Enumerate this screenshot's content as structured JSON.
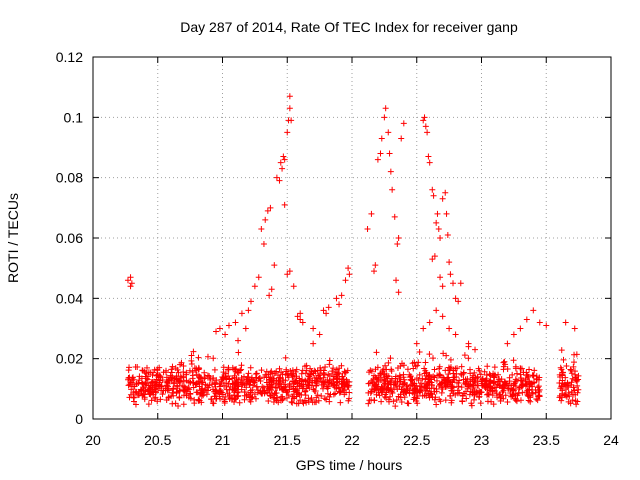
{
  "chart_data": {
    "type": "scatter",
    "title": "Day 287 of 2014, Rate Of TEC Index for receiver ganp",
    "xlabel": "GPS time / hours",
    "ylabel": "ROTI / TECUs",
    "xlim": [
      20,
      24
    ],
    "ylim": [
      0,
      0.12
    ],
    "x_ticks": [
      "20",
      "20.5",
      "21",
      "21.5",
      "22",
      "22.5",
      "23",
      "23.5",
      "24"
    ],
    "y_ticks": [
      "0",
      "0.02",
      "0.04",
      "0.06",
      "0.08",
      "0.1",
      "0.12"
    ],
    "grid": true,
    "marker": "+",
    "color": "#ff0000",
    "series": [
      {
        "name": "ROTI",
        "background_band": {
          "segments": [
            [
              20.27,
              21.98
            ],
            [
              22.12,
              23.45
            ],
            [
              23.6,
              23.75
            ]
          ],
          "y_range": [
            0.004,
            0.018
          ],
          "point_count": 1500
        },
        "points": [
          [
            20.27,
            0.046
          ],
          [
            20.29,
            0.047
          ],
          [
            20.3,
            0.045
          ],
          [
            20.29,
            0.044
          ],
          [
            20.95,
            0.029
          ],
          [
            20.98,
            0.03
          ],
          [
            21.02,
            0.028
          ],
          [
            21.05,
            0.031
          ],
          [
            21.1,
            0.032
          ],
          [
            21.12,
            0.026
          ],
          [
            21.15,
            0.035
          ],
          [
            21.18,
            0.03
          ],
          [
            21.2,
            0.036
          ],
          [
            21.22,
            0.039
          ],
          [
            21.25,
            0.044
          ],
          [
            21.28,
            0.047
          ],
          [
            21.3,
            0.063
          ],
          [
            21.32,
            0.058
          ],
          [
            21.33,
            0.066
          ],
          [
            21.35,
            0.069
          ],
          [
            21.37,
            0.07
          ],
          [
            21.36,
            0.041
          ],
          [
            21.38,
            0.043
          ],
          [
            21.4,
            0.051
          ],
          [
            21.42,
            0.08
          ],
          [
            21.44,
            0.079
          ],
          [
            21.45,
            0.085
          ],
          [
            21.46,
            0.083
          ],
          [
            21.47,
            0.087
          ],
          [
            21.48,
            0.086
          ],
          [
            21.48,
            0.071
          ],
          [
            21.5,
            0.095
          ],
          [
            21.51,
            0.099
          ],
          [
            21.52,
            0.107
          ],
          [
            21.52,
            0.103
          ],
          [
            21.53,
            0.099
          ],
          [
            21.5,
            0.048
          ],
          [
            21.52,
            0.049
          ],
          [
            21.55,
            0.044
          ],
          [
            21.58,
            0.034
          ],
          [
            21.6,
            0.033
          ],
          [
            21.62,
            0.032
          ],
          [
            21.7,
            0.025
          ],
          [
            21.78,
            0.036
          ],
          [
            21.8,
            0.035
          ],
          [
            21.82,
            0.037
          ],
          [
            21.88,
            0.04
          ],
          [
            21.9,
            0.038
          ],
          [
            21.92,
            0.041
          ],
          [
            21.95,
            0.046
          ],
          [
            21.97,
            0.05
          ],
          [
            21.98,
            0.048
          ],
          [
            22.12,
            0.063
          ],
          [
            22.15,
            0.068
          ],
          [
            22.17,
            0.049
          ],
          [
            22.18,
            0.051
          ],
          [
            22.2,
            0.086
          ],
          [
            22.22,
            0.088
          ],
          [
            22.23,
            0.093
          ],
          [
            22.25,
            0.1
          ],
          [
            22.26,
            0.103
          ],
          [
            22.28,
            0.095
          ],
          [
            22.29,
            0.088
          ],
          [
            22.3,
            0.082
          ],
          [
            22.31,
            0.076
          ],
          [
            22.33,
            0.067
          ],
          [
            22.35,
            0.058
          ],
          [
            22.36,
            0.06
          ],
          [
            22.34,
            0.046
          ],
          [
            22.36,
            0.042
          ],
          [
            22.38,
            0.093
          ],
          [
            22.4,
            0.098
          ],
          [
            22.55,
            0.099
          ],
          [
            22.56,
            0.1
          ],
          [
            22.57,
            0.097
          ],
          [
            22.58,
            0.095
          ],
          [
            22.59,
            0.087
          ],
          [
            22.6,
            0.085
          ],
          [
            22.62,
            0.076
          ],
          [
            22.63,
            0.074
          ],
          [
            22.62,
            0.053
          ],
          [
            22.64,
            0.054
          ],
          [
            22.65,
            0.065
          ],
          [
            22.66,
            0.068
          ],
          [
            22.67,
            0.063
          ],
          [
            22.68,
            0.06
          ],
          [
            22.7,
            0.073
          ],
          [
            22.72,
            0.075
          ],
          [
            22.73,
            0.068
          ],
          [
            22.74,
            0.061
          ],
          [
            22.75,
            0.052
          ],
          [
            22.76,
            0.048
          ],
          [
            22.78,
            0.045
          ],
          [
            22.8,
            0.04
          ],
          [
            22.82,
            0.039
          ],
          [
            22.84,
            0.045
          ],
          [
            22.68,
            0.047
          ],
          [
            22.7,
            0.044
          ],
          [
            22.5,
            0.025
          ],
          [
            22.55,
            0.03
          ],
          [
            22.6,
            0.032
          ],
          [
            22.65,
            0.036
          ],
          [
            22.7,
            0.034
          ],
          [
            22.75,
            0.03
          ],
          [
            22.8,
            0.028
          ],
          [
            22.9,
            0.024
          ],
          [
            22.95,
            0.023
          ],
          [
            23.2,
            0.025
          ],
          [
            23.25,
            0.028
          ],
          [
            23.3,
            0.03
          ],
          [
            23.35,
            0.033
          ],
          [
            23.4,
            0.036
          ],
          [
            23.45,
            0.032
          ],
          [
            23.5,
            0.031
          ],
          [
            23.65,
            0.032
          ],
          [
            23.72,
            0.03
          ],
          [
            21.6,
            0.035
          ],
          [
            21.7,
            0.03
          ],
          [
            21.75,
            0.028
          ],
          [
            22.9,
            0.025
          ]
        ]
      }
    ]
  }
}
